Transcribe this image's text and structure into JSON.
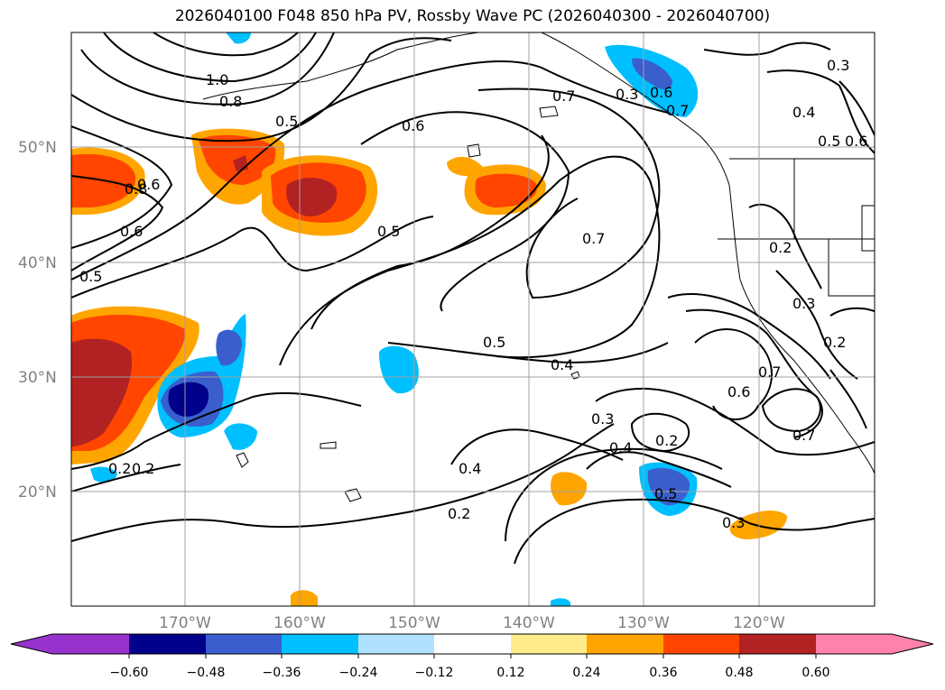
{
  "title": "2026040100 F048 850 hPa PV, Rossby Wave PC (2026040300 - 2026040700)",
  "map": {
    "lat_labels": [
      "50°N",
      "40°N",
      "30°N",
      "20°N"
    ],
    "lon_labels": [
      "170°W",
      "160°W",
      "150°W",
      "140°W",
      "130°W",
      "120°W"
    ],
    "contour_labels": [
      "1.0",
      "0.8",
      "0.5",
      "0.6",
      "0.7",
      "0.7",
      "0.6",
      "0.5",
      "0.5",
      "0.5",
      "0.4",
      "0.3",
      "0.2",
      "0.4",
      "0.2",
      "0.2",
      "0.4",
      "0.3",
      "0.5",
      "0.7",
      "0.6",
      "0.7",
      "0.3",
      "0.2",
      "0.3",
      "0.2",
      "0.4",
      "0.5",
      "0.6",
      "0.3",
      "0.8",
      "0.6",
      "0.7",
      "0.6",
      "0.2"
    ]
  },
  "colorbar": {
    "ticks": [
      "−0.60",
      "−0.48",
      "−0.36",
      "−0.24",
      "−0.12",
      "0.12",
      "0.24",
      "0.36",
      "0.48",
      "0.60"
    ],
    "colors": [
      "#9932cc",
      "#00008b",
      "#3a5fcd",
      "#00bfff",
      "#b0e2ff",
      "#ffffff",
      "#ffec8b",
      "#ffa500",
      "#ff4500",
      "#b22222",
      "#ff82ab"
    ]
  }
}
